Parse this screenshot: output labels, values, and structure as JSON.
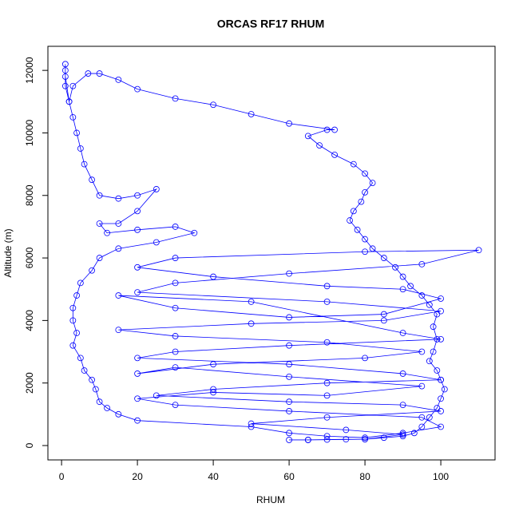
{
  "chart_data": {
    "type": "line",
    "title": "ORCAS RF17 RHUM",
    "x_label": "RHUM",
    "y_label": "Altitude (m)",
    "color": "#0000ff",
    "markers": true,
    "xlim": [
      -3.6,
      114.3
    ],
    "ylim": [
      -460,
      12770
    ],
    "xticks": [
      0,
      20,
      40,
      60,
      80,
      100
    ],
    "yticks": [
      0,
      2000,
      4000,
      6000,
      8000,
      10000,
      12000
    ],
    "series": [
      {
        "name": "RHUM",
        "color": "#0000ff",
        "x": [
          60,
          65,
          70,
          75,
          80,
          85,
          90,
          93,
          95,
          97,
          99,
          100,
          101,
          100,
          99,
          97,
          98,
          99,
          98,
          99,
          97,
          95,
          92,
          90,
          88,
          85,
          82,
          80,
          78,
          76,
          77,
          79,
          80,
          82,
          80,
          77,
          72,
          68,
          65,
          70,
          72,
          60,
          50,
          40,
          30,
          20,
          15,
          10,
          7,
          3,
          2,
          1,
          1,
          1,
          1,
          2,
          3,
          4,
          5,
          6,
          8,
          10,
          15,
          20,
          25,
          20,
          15,
          10,
          12,
          20,
          30,
          35,
          25,
          15,
          10,
          8,
          5,
          4,
          3,
          3,
          4,
          3,
          5,
          6,
          8,
          9,
          10,
          12,
          15,
          20,
          50,
          60,
          70,
          80,
          90,
          100,
          95,
          60,
          30,
          20,
          40,
          70,
          95,
          60,
          30,
          20,
          40,
          80,
          95,
          70,
          30,
          15,
          50,
          85,
          100,
          70,
          20,
          30,
          60,
          95,
          110,
          80,
          30,
          20,
          40,
          70,
          90,
          100,
          85,
          60,
          30,
          15,
          50,
          90,
          100,
          60,
          30,
          20,
          60,
          90,
          100,
          70,
          40,
          25,
          60,
          90,
          100,
          70,
          50,
          75,
          90,
          80,
          65
        ],
        "values": [
          180,
          180,
          190,
          200,
          200,
          250,
          300,
          400,
          600,
          900,
          1200,
          1500,
          1800,
          2100,
          2400,
          2700,
          3000,
          3400,
          3800,
          4200,
          4500,
          4800,
          5100,
          5400,
          5700,
          6000,
          6300,
          6600,
          6900,
          7200,
          7500,
          7800,
          8100,
          8400,
          8700,
          9000,
          9300,
          9600,
          9900,
          10100,
          10100,
          10300,
          10600,
          10900,
          11100,
          11400,
          11700,
          11900,
          11900,
          11500,
          11000,
          11500,
          12000,
          12200,
          11800,
          11000,
          10500,
          10000,
          9500,
          9000,
          8500,
          8000,
          7900,
          8000,
          8200,
          7500,
          7100,
          7100,
          6800,
          6900,
          7000,
          6800,
          6500,
          6300,
          6000,
          5600,
          5200,
          4800,
          4400,
          4000,
          3600,
          3200,
          2800,
          2400,
          2100,
          1800,
          1400,
          1200,
          1000,
          800,
          600,
          400,
          300,
          250,
          400,
          600,
          900,
          1100,
          1300,
          1500,
          1700,
          1600,
          1900,
          2200,
          2500,
          2300,
          2600,
          2800,
          3000,
          3300,
          3500,
          3700,
          3900,
          4000,
          4300,
          4600,
          4900,
          5200,
          5500,
          5800,
          6250,
          6200,
          6000,
          5700,
          5400,
          5100,
          5000,
          4700,
          4200,
          4100,
          4400,
          4800,
          4600,
          3600,
          3400,
          3200,
          3000,
          2800,
          2600,
          2300,
          2100,
          2000,
          1800,
          1600,
          1400,
          1300,
          1100,
          900,
          700,
          500,
          350,
          200,
          180
        ]
      }
    ]
  }
}
